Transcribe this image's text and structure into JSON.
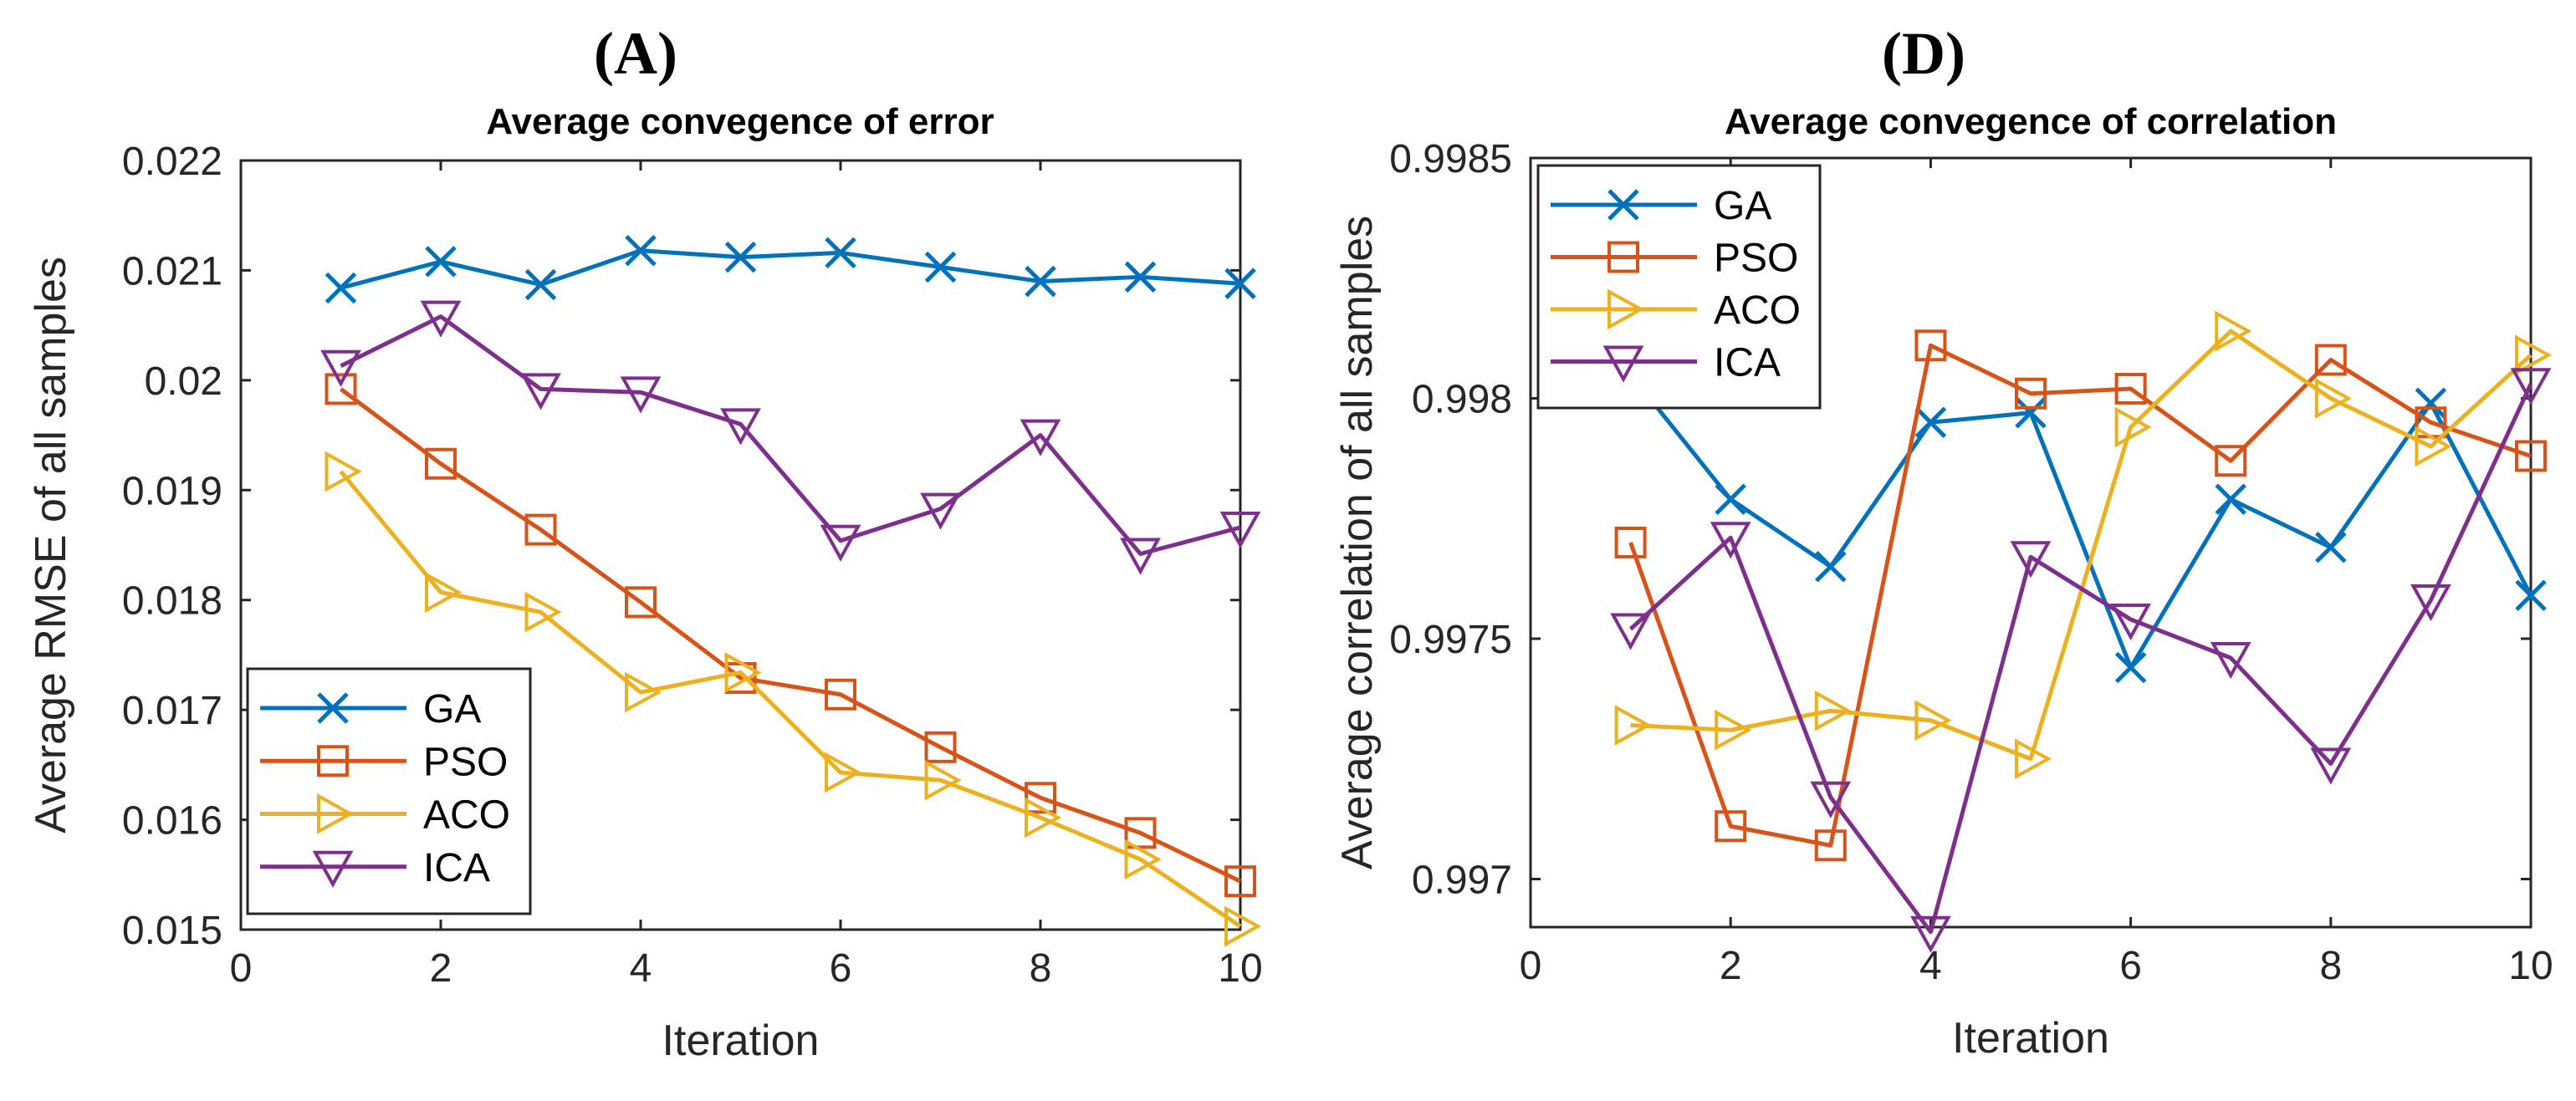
{
  "chart_data": [
    {
      "type": "line",
      "panel_label": "(A)",
      "title": "Average convegence of error",
      "xlabel": "Iteration",
      "ylabel": "Average RMSE of all samples",
      "xlim": [
        0,
        10
      ],
      "ylim": [
        0.015,
        0.022
      ],
      "xticks": [
        "0",
        "2",
        "4",
        "6",
        "8",
        "10"
      ],
      "yticks": [
        "0.015",
        "0.016",
        "0.017",
        "0.018",
        "0.019",
        "0.02",
        "0.021",
        "0.022"
      ],
      "legend_position": "bottom-left",
      "x": [
        1,
        2,
        3,
        4,
        5,
        6,
        7,
        8,
        9,
        10
      ],
      "series": [
        {
          "name": "GA",
          "color": "#0072BD",
          "marker": "x",
          "values": [
            0.02084,
            0.02108,
            0.02087,
            0.02118,
            0.02112,
            0.02116,
            0.02103,
            0.0209,
            0.02094,
            0.02088
          ]
        },
        {
          "name": "PSO",
          "color": "#D95319",
          "marker": "square",
          "values": [
            0.01992,
            0.01924,
            0.01864,
            0.01798,
            0.01729,
            0.01714,
            0.01666,
            0.0162,
            0.01588,
            0.01544
          ]
        },
        {
          "name": "ACO",
          "color": "#EDB120",
          "marker": "triangle-right",
          "values": [
            0.01917,
            0.01807,
            0.01789,
            0.01716,
            0.01734,
            0.01643,
            0.01636,
            0.01602,
            0.01564,
            0.01503
          ]
        },
        {
          "name": "ICA",
          "color": "#7E2F8E",
          "marker": "triangle-down",
          "values": [
            0.02013,
            0.02058,
            0.01992,
            0.01989,
            0.0196,
            0.01854,
            0.01883,
            0.0195,
            0.01842,
            0.01866
          ]
        }
      ]
    },
    {
      "type": "line",
      "panel_label": "(D)",
      "title": "Average convegence of correlation",
      "xlabel": "Iteration",
      "ylabel": "Average correlation of all samples",
      "xlim": [
        0,
        10
      ],
      "ylim": [
        0.9969,
        0.9985
      ],
      "xticks": [
        "0",
        "2",
        "4",
        "6",
        "8",
        "10"
      ],
      "yticks": [
        "0.997",
        "0.9975",
        "0.998",
        "0.9985"
      ],
      "legend_position": "top-left",
      "x": [
        1,
        2,
        3,
        4,
        5,
        6,
        7,
        8,
        9,
        10
      ],
      "series": [
        {
          "name": "GA",
          "color": "#0072BD",
          "marker": "x",
          "values": [
            0.99805,
            0.99779,
            0.99765,
            0.99795,
            0.99797,
            0.99744,
            0.99779,
            0.99769,
            0.99799,
            0.99759
          ]
        },
        {
          "name": "PSO",
          "color": "#D95319",
          "marker": "square",
          "values": [
            0.9977,
            0.99711,
            0.99707,
            0.99811,
            0.99801,
            0.99802,
            0.99787,
            0.99808,
            0.99795,
            0.99788
          ]
        },
        {
          "name": "ACO",
          "color": "#EDB120",
          "marker": "triangle-right",
          "values": [
            0.99732,
            0.99731,
            0.99735,
            0.99733,
            0.99725,
            0.99794,
            0.99814,
            0.998,
            0.9979,
            0.99809
          ]
        },
        {
          "name": "ICA",
          "color": "#7E2F8E",
          "marker": "triangle-down",
          "values": [
            0.99752,
            0.99771,
            0.99717,
            0.99689,
            0.99767,
            0.99754,
            0.99746,
            0.99724,
            0.99758,
            0.99803
          ]
        }
      ]
    }
  ]
}
